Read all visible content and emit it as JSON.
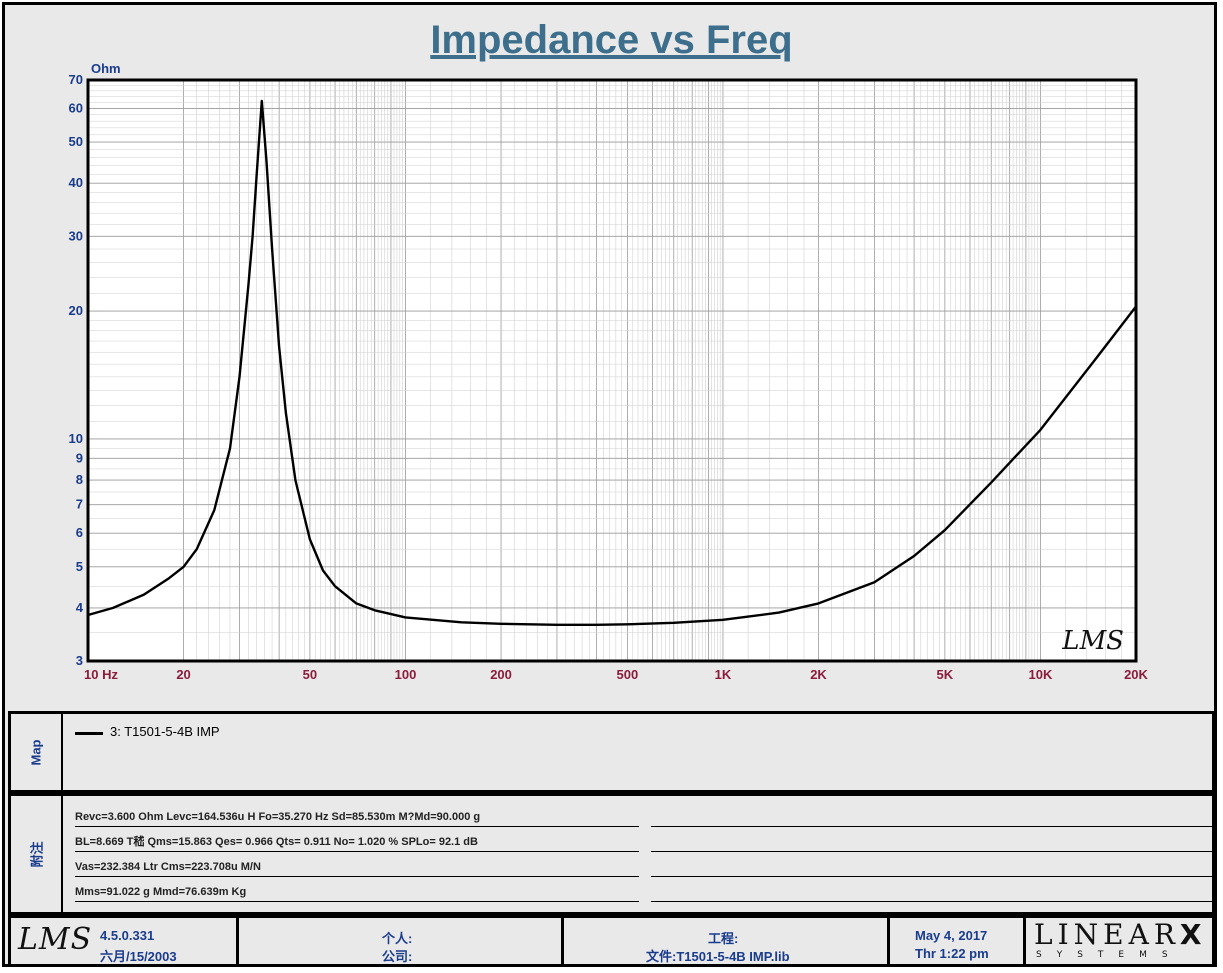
{
  "title": "Impedance vs Freq",
  "chart_data": {
    "type": "line",
    "title": "Impedance vs Freq",
    "ylabel": "Ohm",
    "xscale": "log",
    "yscale": "log",
    "xlim": [
      10,
      20000
    ],
    "ylim": [
      3,
      70
    ],
    "grid": true,
    "x_ticks": [
      {
        "v": 10,
        "label": "10  Hz"
      },
      {
        "v": 20,
        "label": "20"
      },
      {
        "v": 50,
        "label": "50"
      },
      {
        "v": 100,
        "label": "100"
      },
      {
        "v": 200,
        "label": "200"
      },
      {
        "v": 500,
        "label": "500"
      },
      {
        "v": 1000,
        "label": "1K"
      },
      {
        "v": 2000,
        "label": "2K"
      },
      {
        "v": 5000,
        "label": "5K"
      },
      {
        "v": 10000,
        "label": "10K"
      },
      {
        "v": 20000,
        "label": "20K"
      }
    ],
    "y_ticks": [
      {
        "v": 3,
        "label": "3"
      },
      {
        "v": 4,
        "label": "4"
      },
      {
        "v": 5,
        "label": "5"
      },
      {
        "v": 6,
        "label": "6"
      },
      {
        "v": 7,
        "label": "7"
      },
      {
        "v": 8,
        "label": "8"
      },
      {
        "v": 9,
        "label": "9"
      },
      {
        "v": 10,
        "label": "10"
      },
      {
        "v": 20,
        "label": "20"
      },
      {
        "v": 30,
        "label": "30"
      },
      {
        "v": 40,
        "label": "40"
      },
      {
        "v": 50,
        "label": "50"
      },
      {
        "v": 60,
        "label": "60"
      },
      {
        "v": 70,
        "label": "70"
      }
    ],
    "series": [
      {
        "name": "3: T1501-5-4B  IMP",
        "color": "#000000",
        "x": [
          10,
          12,
          15,
          18,
          20,
          22,
          25,
          28,
          30,
          32,
          33,
          34,
          35.27,
          36.5,
          38,
          40,
          42,
          45,
          50,
          55,
          60,
          70,
          80,
          100,
          150,
          200,
          300,
          400,
          500,
          700,
          1000,
          1500,
          2000,
          3000,
          4000,
          5000,
          7000,
          10000,
          15000,
          20000
        ],
        "y": [
          3.85,
          4.0,
          4.3,
          4.7,
          5.0,
          5.5,
          6.8,
          9.5,
          14.0,
          23.0,
          30.0,
          42.0,
          62.5,
          45.0,
          28.0,
          16.5,
          11.5,
          8.0,
          5.8,
          4.9,
          4.5,
          4.1,
          3.95,
          3.8,
          3.7,
          3.67,
          3.65,
          3.65,
          3.66,
          3.69,
          3.75,
          3.9,
          4.1,
          4.6,
          5.3,
          6.1,
          7.9,
          10.5,
          15.5,
          20.5
        ]
      }
    ]
  },
  "chart_watermark": "LMS",
  "map_panel": {
    "label": "Map",
    "legend_entry": "3: T1501-5-4B  IMP"
  },
  "notes_panel": {
    "label": "附注",
    "lines": [
      "Revc=3.600 Ohm  Levc=164.536u H  Fo=35.270 Hz  Sd=85.530m M?Md=90.000 g",
      "BL=8.669 T嵇  Qms=15.863  Qes= 0.966  Qts= 0.911  No= 1.020 %  SPLo= 92.1 dB",
      "Vas=232.384 Ltr  Cms=223.708u M/N",
      "Mms=91.022 g  Mmd=76.639m Kg"
    ]
  },
  "footer": {
    "logo": "LMS",
    "version": "4.5.0.331",
    "version_date": "六月/15/2003",
    "person_label": "个人:",
    "company_label": "公司:",
    "project_label": "工程:",
    "file_label": "文件:T1501-5-4B  IMP.lib",
    "date": "May  4, 2017",
    "time": "Thr  1:22 pm",
    "brand_top": "LINEAR",
    "brand_x": "X",
    "brand_bottom": "SYSTEMS"
  },
  "colors": {
    "title": "#3d6f8c",
    "axis_labels": "#1a3c8c",
    "x_tick_labels": "#8b1c3c",
    "background": "#e9e9e9",
    "plot_background": "#ffffff"
  }
}
